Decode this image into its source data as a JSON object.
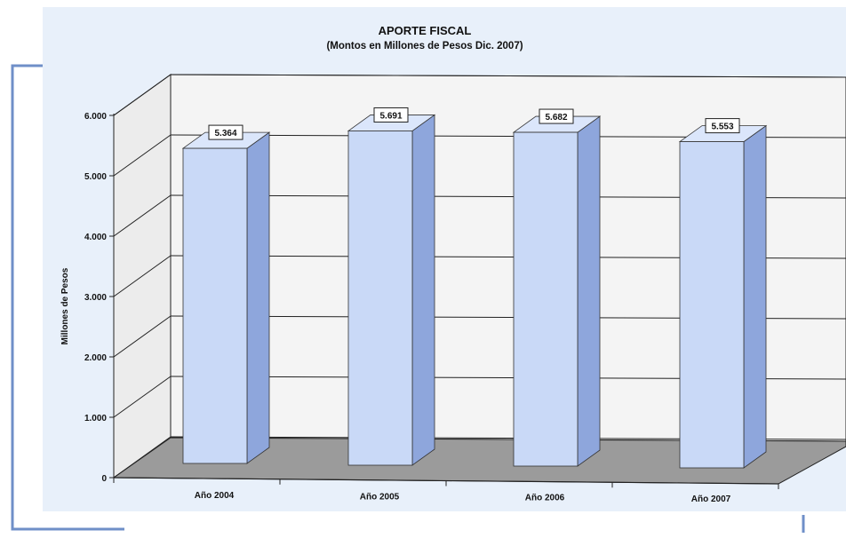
{
  "chart_data": {
    "type": "bar",
    "title": "APORTE FISCAL",
    "subtitle": "(Montos en Millones de Pesos Dic. 2007)",
    "xlabel": "",
    "ylabel": "Millones de Pesos",
    "categories": [
      "Año 2004",
      "Año 2005",
      "Año 2006",
      "Año 2007"
    ],
    "values": [
      5364,
      5691,
      5682,
      5553
    ],
    "value_labels": [
      "5.364",
      "5.691",
      "5.682",
      "5.553"
    ],
    "y_ticks": [
      0,
      1000,
      2000,
      3000,
      4000,
      5000,
      6000
    ],
    "y_tick_labels": [
      "0",
      "1.000",
      "2.000",
      "3.000",
      "4.000",
      "5.000",
      "6.000"
    ],
    "ylim": [
      0,
      6000
    ],
    "grid": true,
    "legend": "none",
    "style": "3d-column",
    "colors": {
      "panel_bg": "#e8f0fa",
      "bar_front": "#c9d9f7",
      "bar_side": "#8ea6dc",
      "bar_top": "#dbe6fb",
      "floor": "#9b9b9b",
      "back_wall": "#f4f4f4",
      "side_wall": "#ececec",
      "frame_line": "#6f8fc8",
      "title_color": "#111111"
    }
  }
}
